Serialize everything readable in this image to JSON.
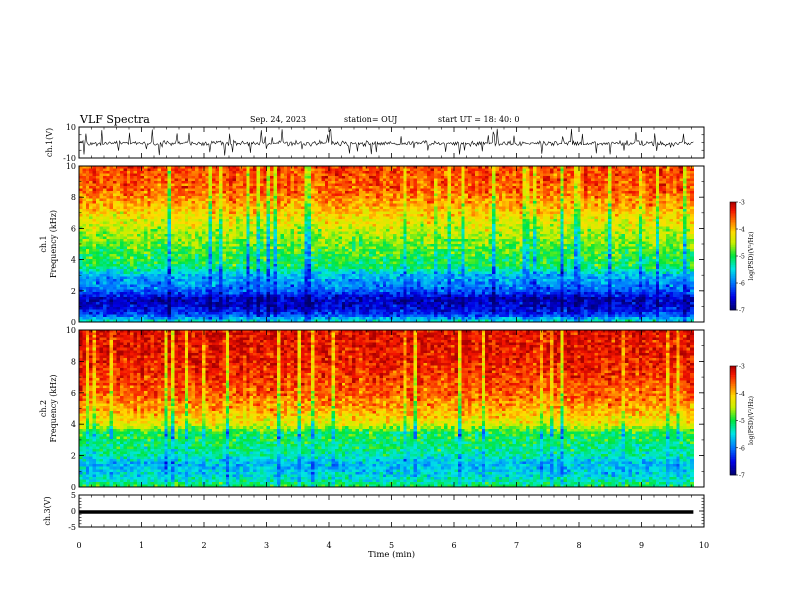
{
  "header": {
    "title": "VLF Spectra",
    "date": "Sep. 24, 2023",
    "station": "station= OUJ",
    "start": "start  UT  =   18: 40: 0"
  },
  "chart_data": [
    {
      "type": "line",
      "panel": "ch1-waveform",
      "ylabel": "ch.1(V)",
      "ylim": [
        -10,
        10
      ],
      "yticks": [
        "10",
        "-10"
      ],
      "xlim": [
        0,
        10
      ],
      "x_end": 9.83,
      "typical_amplitude_v": [
        -2.5,
        1.5
      ]
    },
    {
      "type": "heatmap",
      "panel": "ch1-spectrogram",
      "ylabel_line1": "ch.1",
      "ylabel_line2": "Frequency (kHz)",
      "ylim": [
        0,
        10
      ],
      "yticks": [
        "0",
        "2",
        "4",
        "6",
        "8",
        "10"
      ],
      "xlim": [
        0,
        10
      ],
      "x_end": 9.83,
      "colorbar": {
        "label": "log(PSD)(V²/Hz)",
        "range": [
          -7,
          -3
        ],
        "ticks": [
          "-3",
          "-4",
          "-5",
          "-6",
          "-7"
        ]
      },
      "profile_freq_khz": [
        0,
        0.5,
        1.0,
        1.5,
        2.0,
        2.5,
        3.0,
        3.5,
        4.5,
        5.5,
        6.5,
        7.5,
        8.5,
        10
      ],
      "profile_log_psd": [
        -5.3,
        -6.3,
        -6.6,
        -6.7,
        -6.1,
        -5.9,
        -5.7,
        -5.1,
        -4.9,
        -4.6,
        -4.3,
        -3.9,
        -3.6,
        -3.5
      ]
    },
    {
      "type": "heatmap",
      "panel": "ch2-spectrogram",
      "ylabel_line1": "ch.2",
      "ylabel_line2": "Frequency (kHz)",
      "ylim": [
        0,
        10
      ],
      "yticks": [
        "0",
        "2",
        "4",
        "6",
        "8",
        "10"
      ],
      "xlim": [
        0,
        10
      ],
      "x_end": 9.83,
      "colorbar": {
        "label": "log(PSD)(V²/Hz)",
        "range": [
          -7,
          -3
        ],
        "ticks": [
          "-3",
          "-4",
          "-5",
          "-6",
          "-7"
        ]
      },
      "profile_freq_khz": [
        0,
        0.5,
        1.0,
        1.5,
        2.0,
        2.5,
        3.0,
        3.5,
        4.0,
        5.0,
        6.0,
        8.0,
        10
      ],
      "profile_log_psd": [
        -5.0,
        -5.4,
        -5.6,
        -5.7,
        -5.3,
        -5.2,
        -5.1,
        -5.0,
        -4.3,
        -3.9,
        -3.6,
        -3.3,
        -3.2
      ]
    },
    {
      "type": "line",
      "panel": "ch3-waveform",
      "ylabel": "ch.3(V)",
      "ylim": [
        -5,
        5
      ],
      "yticks": [
        "5",
        "0",
        "-5"
      ],
      "xlim": [
        0,
        10
      ],
      "x_end": 9.83,
      "level_v": -0.3,
      "xlabel": "Time (min)",
      "xticks": [
        "0",
        "1",
        "2",
        "3",
        "4",
        "5",
        "6",
        "7",
        "8",
        "9",
        "10"
      ]
    }
  ]
}
